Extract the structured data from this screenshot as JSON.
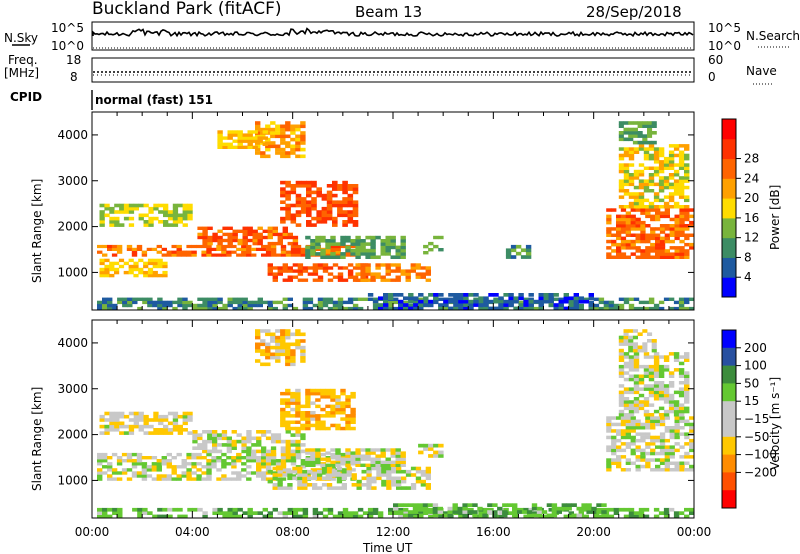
{
  "header": {
    "site": "Buckland Park (fitACF)",
    "beam": "Beam 13",
    "date": "28/Sep/2018"
  },
  "top_panels": {
    "nsky_label": "N.Sky",
    "nsky_ticks": [
      "10^5",
      "10^0"
    ],
    "nsearch_label": "N.Search",
    "nsearch_ticks": [
      "10^5",
      "10^0"
    ],
    "freq_label": "Freq.",
    "freq_unit": "[MHz]",
    "freq_ticks": [
      "18",
      "8"
    ],
    "nave_label": "Nave",
    "nave_ticks": [
      "60",
      "0"
    ],
    "cpid_label": "CPID",
    "cpid_text": "normal (fast) 151"
  },
  "colors": {
    "power_scale": [
      "#0000ff",
      "#1e5aa0",
      "#3c8c64",
      "#78b43c",
      "#ffdc00",
      "#ffa000",
      "#ff6400",
      "#ff3200",
      "#ff0000"
    ],
    "velocity_scale": [
      "#ff0000",
      "#ff5000",
      "#ff8c00",
      "#ffc800",
      "#c8c8c8",
      "#c8c8c8",
      "#64c832",
      "#3c8c3c",
      "#2850a0",
      "#0000ff"
    ]
  },
  "chart_data": [
    {
      "type": "heatmap",
      "panel": "power",
      "ylabel": "Slant Range [km]",
      "yticks": [
        "1000",
        "2000",
        "3000",
        "4000"
      ],
      "ylim": [
        180,
        4500
      ],
      "xlim": [
        0,
        24
      ],
      "colorbar_label": "Power [dB]",
      "colorbar_ticks": [
        "4",
        "8",
        "12",
        "16",
        "20",
        "24",
        "28"
      ],
      "colorbar_range": [
        0,
        32
      ],
      "regions": [
        {
          "t0": 0.2,
          "t1": 10.5,
          "r0": 1350,
          "r1": 1600,
          "value": 26
        },
        {
          "t0": 4.2,
          "t1": 8.2,
          "r0": 1600,
          "r1": 2000,
          "value": 27
        },
        {
          "t0": 7.5,
          "t1": 10.6,
          "r0": 2000,
          "r1": 3000,
          "value": 28
        },
        {
          "t0": 6.5,
          "t1": 8.5,
          "r0": 3500,
          "r1": 4300,
          "value": 22
        },
        {
          "t0": 5.0,
          "t1": 7.0,
          "r0": 3700,
          "r1": 4100,
          "value": 20
        },
        {
          "t0": 0.3,
          "t1": 4.0,
          "r0": 2000,
          "r1": 2500,
          "value": 16
        },
        {
          "t0": 0.3,
          "t1": 3.0,
          "r0": 900,
          "r1": 1300,
          "value": 20
        },
        {
          "t0": 7.0,
          "t1": 11.0,
          "r0": 800,
          "r1": 1200,
          "value": 28
        },
        {
          "t0": 8.5,
          "t1": 12.5,
          "r0": 1300,
          "r1": 1800,
          "value": 12
        },
        {
          "t0": 10.5,
          "t1": 13.5,
          "r0": 800,
          "r1": 1200,
          "value": 24
        },
        {
          "t0": 13.0,
          "t1": 14.0,
          "r0": 1400,
          "r1": 1800,
          "value": 12
        },
        {
          "t0": 0.0,
          "t1": 24.0,
          "r0": 180,
          "r1": 450,
          "value": 10
        },
        {
          "t0": 11.0,
          "t1": 20.0,
          "r0": 180,
          "r1": 550,
          "value": 6
        },
        {
          "t0": 20.5,
          "t1": 24.0,
          "r0": 1300,
          "r1": 2400,
          "value": 26
        },
        {
          "t0": 21.0,
          "t1": 23.8,
          "r0": 2400,
          "r1": 3800,
          "value": 18
        },
        {
          "t0": 21.0,
          "t1": 22.5,
          "r0": 3800,
          "r1": 4300,
          "value": 12
        },
        {
          "t0": 16.5,
          "t1": 17.5,
          "r0": 1300,
          "r1": 1600,
          "value": 10
        }
      ]
    },
    {
      "type": "heatmap",
      "panel": "velocity",
      "ylabel": "Slant Range [km]",
      "yticks": [
        "1000",
        "2000",
        "3000",
        "4000"
      ],
      "ylim": [
        180,
        4500
      ],
      "xlim": [
        0,
        24
      ],
      "colorbar_label": "Velocity [m s⁻¹]",
      "colorbar_ticks": [
        "200",
        "100",
        "50",
        "15",
        "−15",
        "−50",
        "−100",
        "−200"
      ],
      "colorbar_range": [
        -250,
        250
      ],
      "regions": [
        {
          "t0": 0.2,
          "t1": 10.5,
          "r0": 1000,
          "r1": 1600,
          "value": 0
        },
        {
          "t0": 4.0,
          "t1": 8.5,
          "r0": 1600,
          "r1": 2100,
          "value": 0
        },
        {
          "t0": 7.5,
          "t1": 10.5,
          "r0": 2100,
          "r1": 3000,
          "value": -40
        },
        {
          "t0": 6.5,
          "t1": 8.5,
          "r0": 3500,
          "r1": 4300,
          "value": -30
        },
        {
          "t0": 0.3,
          "t1": 4.0,
          "r0": 2000,
          "r1": 2500,
          "value": -10
        },
        {
          "t0": 7.0,
          "t1": 13.5,
          "r0": 800,
          "r1": 1300,
          "value": 0
        },
        {
          "t0": 8.5,
          "t1": 12.5,
          "r0": 1300,
          "r1": 1700,
          "value": 0
        },
        {
          "t0": 0.0,
          "t1": 24.0,
          "r0": 180,
          "r1": 400,
          "value": 40
        },
        {
          "t0": 12.0,
          "t1": 20.5,
          "r0": 200,
          "r1": 500,
          "value": 40
        },
        {
          "t0": 20.5,
          "t1": 24.0,
          "r0": 1200,
          "r1": 2400,
          "value": 0
        },
        {
          "t0": 21.0,
          "t1": 23.8,
          "r0": 2400,
          "r1": 3800,
          "value": 0
        },
        {
          "t0": 21.0,
          "t1": 22.5,
          "r0": 3800,
          "r1": 4300,
          "value": 0
        },
        {
          "t0": 13.0,
          "t1": 14.0,
          "r0": 1500,
          "r1": 1800,
          "value": 0
        }
      ]
    }
  ],
  "xaxis": {
    "label": "Time UT",
    "ticks": [
      "00:00",
      "04:00",
      "08:00",
      "12:00",
      "16:00",
      "20:00",
      "00:00"
    ]
  }
}
